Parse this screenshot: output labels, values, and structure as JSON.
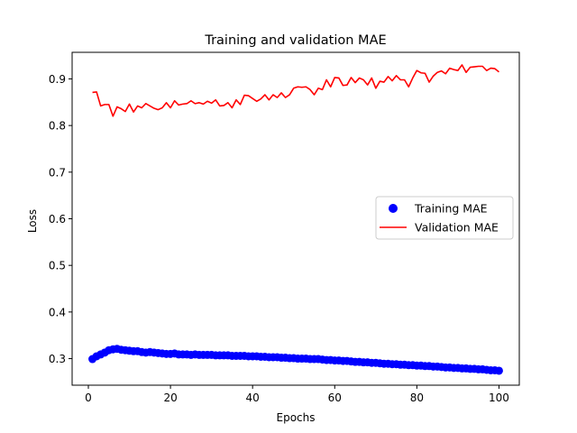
{
  "chart_data": {
    "type": "line",
    "title": "Training and validation MAE",
    "xlabel": "Epochs",
    "ylabel": "Loss",
    "xlim": [
      -3.95,
      104.95
    ],
    "ylim": [
      0.243,
      0.957
    ],
    "xticks": [
      0,
      20,
      40,
      60,
      80,
      100
    ],
    "yticks": [
      0.3,
      0.4,
      0.5,
      0.6,
      0.7,
      0.8,
      0.9
    ],
    "ytick_labels": [
      "0.3",
      "0.4",
      "0.5",
      "0.6",
      "0.7",
      "0.8",
      "0.9"
    ],
    "grid": false,
    "legend_position": "center-right",
    "series": [
      {
        "name": "Training MAE",
        "style": "markers",
        "color": "#0000ff",
        "x": [
          1,
          2,
          3,
          4,
          5,
          6,
          7,
          8,
          9,
          10,
          11,
          12,
          13,
          14,
          15,
          16,
          17,
          18,
          19,
          20,
          21,
          22,
          23,
          24,
          25,
          26,
          27,
          28,
          29,
          30,
          31,
          32,
          33,
          34,
          35,
          36,
          37,
          38,
          39,
          40,
          41,
          42,
          43,
          44,
          45,
          46,
          47,
          48,
          49,
          50,
          51,
          52,
          53,
          54,
          55,
          56,
          57,
          58,
          59,
          60,
          61,
          62,
          63,
          64,
          65,
          66,
          67,
          68,
          69,
          70,
          71,
          72,
          73,
          74,
          75,
          76,
          77,
          78,
          79,
          80,
          81,
          82,
          83,
          84,
          85,
          86,
          87,
          88,
          89,
          90,
          91,
          92,
          93,
          94,
          95,
          96,
          97,
          98,
          99,
          100
        ],
        "y": [
          0.299,
          0.305,
          0.309,
          0.313,
          0.318,
          0.32,
          0.321,
          0.319,
          0.318,
          0.317,
          0.316,
          0.316,
          0.314,
          0.313,
          0.314,
          0.313,
          0.312,
          0.311,
          0.31,
          0.31,
          0.311,
          0.309,
          0.309,
          0.309,
          0.308,
          0.309,
          0.308,
          0.308,
          0.308,
          0.308,
          0.307,
          0.307,
          0.307,
          0.307,
          0.306,
          0.306,
          0.306,
          0.306,
          0.305,
          0.305,
          0.305,
          0.304,
          0.304,
          0.303,
          0.303,
          0.303,
          0.302,
          0.302,
          0.301,
          0.301,
          0.3,
          0.3,
          0.3,
          0.299,
          0.299,
          0.299,
          0.298,
          0.297,
          0.297,
          0.296,
          0.296,
          0.295,
          0.295,
          0.294,
          0.293,
          0.293,
          0.292,
          0.292,
          0.291,
          0.291,
          0.29,
          0.289,
          0.289,
          0.288,
          0.288,
          0.287,
          0.287,
          0.286,
          0.286,
          0.285,
          0.285,
          0.284,
          0.284,
          0.283,
          0.283,
          0.282,
          0.281,
          0.281,
          0.28,
          0.28,
          0.279,
          0.279,
          0.278,
          0.278,
          0.277,
          0.277,
          0.276,
          0.275,
          0.275,
          0.274
        ]
      },
      {
        "name": "Validation MAE",
        "style": "line",
        "color": "#ff0000",
        "x": [
          1,
          2,
          3,
          4,
          5,
          6,
          7,
          8,
          9,
          10,
          11,
          12,
          13,
          14,
          15,
          16,
          17,
          18,
          19,
          20,
          21,
          22,
          23,
          24,
          25,
          26,
          27,
          28,
          29,
          30,
          31,
          32,
          33,
          34,
          35,
          36,
          37,
          38,
          39,
          40,
          41,
          42,
          43,
          44,
          45,
          46,
          47,
          48,
          49,
          50,
          51,
          52,
          53,
          54,
          55,
          56,
          57,
          58,
          59,
          60,
          61,
          62,
          63,
          64,
          65,
          66,
          67,
          68,
          69,
          70,
          71,
          72,
          73,
          74,
          75,
          76,
          77,
          78,
          79,
          80,
          81,
          82,
          83,
          84,
          85,
          86,
          87,
          88,
          89,
          90,
          91,
          92,
          93,
          94,
          95,
          96,
          97,
          98,
          99,
          100
        ],
        "y": [
          0.871,
          0.872,
          0.842,
          0.845,
          0.845,
          0.82,
          0.84,
          0.836,
          0.83,
          0.846,
          0.829,
          0.842,
          0.838,
          0.847,
          0.842,
          0.837,
          0.834,
          0.838,
          0.849,
          0.838,
          0.853,
          0.844,
          0.846,
          0.847,
          0.853,
          0.847,
          0.849,
          0.846,
          0.852,
          0.848,
          0.855,
          0.842,
          0.843,
          0.849,
          0.838,
          0.855,
          0.845,
          0.865,
          0.864,
          0.858,
          0.852,
          0.857,
          0.866,
          0.855,
          0.866,
          0.86,
          0.87,
          0.86,
          0.866,
          0.88,
          0.883,
          0.882,
          0.883,
          0.877,
          0.866,
          0.88,
          0.877,
          0.898,
          0.883,
          0.903,
          0.902,
          0.886,
          0.887,
          0.903,
          0.892,
          0.902,
          0.898,
          0.887,
          0.902,
          0.88,
          0.895,
          0.893,
          0.905,
          0.896,
          0.907,
          0.898,
          0.898,
          0.883,
          0.902,
          0.918,
          0.913,
          0.912,
          0.893,
          0.906,
          0.914,
          0.917,
          0.911,
          0.923,
          0.92,
          0.918,
          0.93,
          0.914,
          0.925,
          0.926,
          0.927,
          0.927,
          0.918,
          0.923,
          0.922,
          0.915
        ]
      }
    ]
  }
}
